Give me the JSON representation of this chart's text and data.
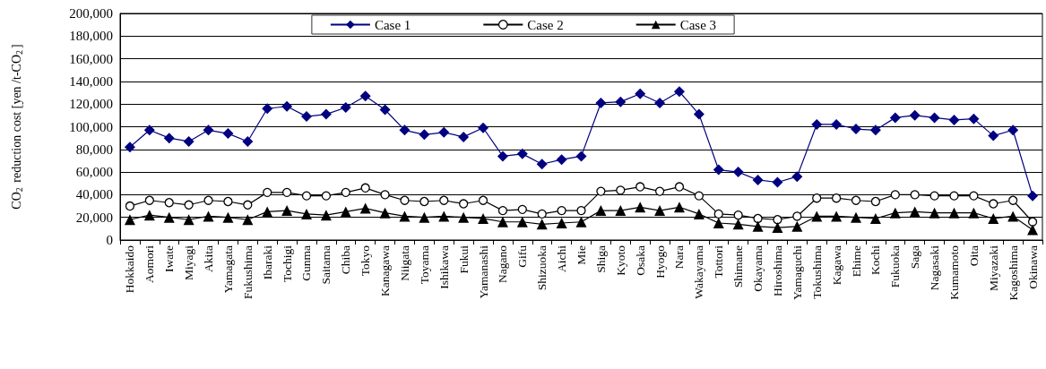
{
  "chart_data": {
    "type": "line",
    "ylabel": "CO$_{2}$ reduction cost [yen /t-CO$_{2}$]",
    "categories": [
      "Hokkaido",
      "Aomori",
      "Iwate",
      "Miyagi",
      "Akita",
      "Yamagata",
      "Fukushima",
      "Ibaraki",
      "Tochigi",
      "Gunma",
      "Saitama",
      "Chiba",
      "Tokyo",
      "Kanagawa",
      "Niigata",
      "Toyama",
      "Ishikawa",
      "Fukui",
      "Yamanashi",
      "Nagano",
      "Gifu",
      "Shizuoka",
      "Aichi",
      "Mie",
      "Shiga",
      "Kyoto",
      "Osaka",
      "Hyogo",
      "Nara",
      "Wakayama",
      "Tottori",
      "Shimane",
      "Okayama",
      "Hiroshima",
      "Yamaguchi",
      "Tokushima",
      "Kagawa",
      "Ehime",
      "Kochi",
      "Fukuoka",
      "Saga",
      "Nagasaki",
      "Kumamoto",
      "Oita",
      "Miyazaki",
      "Kagoshima",
      "Okinawa"
    ],
    "series": [
      {
        "name": "Case 1",
        "color": "#000080",
        "marker": "diamond",
        "values": [
          82000,
          97000,
          90000,
          87000,
          97000,
          94000,
          87000,
          116000,
          118000,
          109000,
          111000,
          117000,
          127000,
          115000,
          97000,
          93000,
          95000,
          91000,
          99000,
          74000,
          76000,
          67000,
          71000,
          74000,
          121000,
          122000,
          129000,
          121000,
          131000,
          111000,
          62000,
          60000,
          53000,
          51000,
          56000,
          102000,
          102000,
          98000,
          97000,
          108000,
          110000,
          108000,
          106000,
          107000,
          92000,
          97000,
          39000
        ]
      },
      {
        "name": "Case 2",
        "color": "#000000",
        "marker": "circle",
        "values": [
          30000,
          35000,
          33000,
          31000,
          35000,
          34000,
          31000,
          42000,
          42000,
          39000,
          39000,
          42000,
          46000,
          40000,
          35000,
          34000,
          35000,
          32000,
          35000,
          26000,
          27000,
          23000,
          26000,
          26000,
          43000,
          44000,
          47000,
          43000,
          47000,
          39000,
          23000,
          22000,
          19000,
          18000,
          21000,
          37000,
          37000,
          35000,
          34000,
          40000,
          40000,
          39000,
          39000,
          39000,
          32000,
          35000,
          16000
        ]
      },
      {
        "name": "Case 3",
        "color": "#000000",
        "marker": "triangle",
        "values": [
          18000,
          22000,
          20000,
          18000,
          21000,
          20000,
          18000,
          25000,
          26000,
          23000,
          22000,
          25000,
          28000,
          24000,
          21000,
          20000,
          21000,
          20000,
          19000,
          16000,
          16000,
          14000,
          15000,
          16000,
          26000,
          26000,
          29000,
          26000,
          29000,
          23000,
          15000,
          14000,
          12000,
          11000,
          12000,
          21000,
          21000,
          20000,
          19000,
          24000,
          25000,
          24000,
          24000,
          24000,
          19000,
          21000,
          9000
        ]
      }
    ],
    "ylim": [
      0,
      200000
    ],
    "yticks": [
      0,
      {
        "value": 20000,
        "label": "20,000"
      },
      {
        "value": 40000,
        "label": "40,000"
      },
      {
        "value": 60000,
        "label": "60,000"
      },
      {
        "value": 80000,
        "label": "80,000"
      },
      {
        "value": 100000,
        "label": "100,000"
      },
      {
        "value": 120000,
        "label": "120,000"
      },
      {
        "value": 140000,
        "label": "140,000"
      },
      {
        "value": 160000,
        "label": "160,000"
      },
      {
        "value": 180000,
        "label": "180,000"
      },
      {
        "value": 200000,
        "label": "200,000"
      }
    ],
    "grid": "y",
    "legend": "top"
  }
}
